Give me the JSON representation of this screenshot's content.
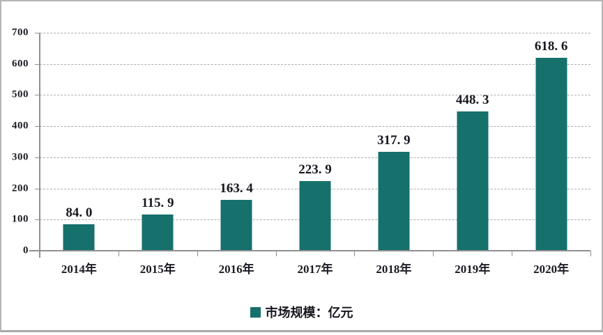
{
  "chart_data": {
    "type": "bar",
    "title": "",
    "xlabel": "",
    "ylabel": "",
    "categories": [
      "2014年",
      "2015年",
      "2016年",
      "2017年",
      "2018年",
      "2019年",
      "2020年"
    ],
    "values": [
      84.0,
      115.9,
      163.4,
      223.9,
      317.9,
      448.3,
      618.6
    ],
    "value_labels": [
      "84. 0",
      "115. 9",
      "163. 4",
      "223. 9",
      "317. 9",
      "448. 3",
      "618. 6"
    ],
    "y_ticks": [
      0,
      100,
      200,
      300,
      400,
      500,
      600,
      700
    ],
    "ylim": [
      0,
      700
    ],
    "grid": "horizontal-dashed",
    "bar_color": "#16706C",
    "legend": {
      "label": "市场规模：亿元",
      "position": "bottom",
      "marker": "square",
      "marker_color": "#16706C"
    }
  }
}
